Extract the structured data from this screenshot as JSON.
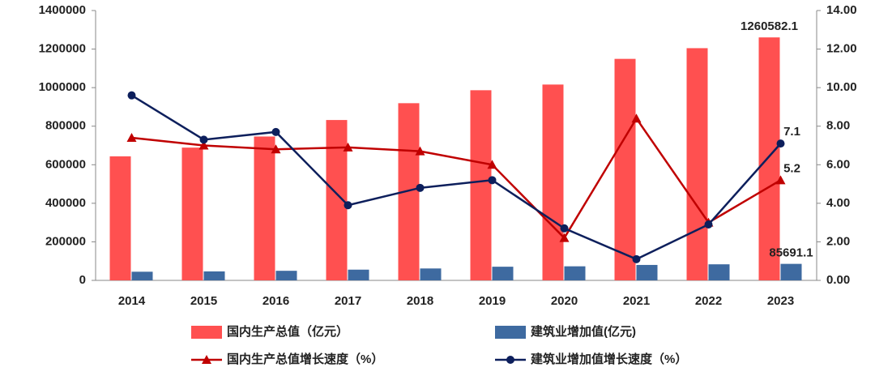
{
  "chart_data": {
    "type": "bar-line",
    "categories": [
      "2014",
      "2015",
      "2016",
      "2017",
      "2018",
      "2019",
      "2020",
      "2021",
      "2022",
      "2023"
    ],
    "series": [
      {
        "name": "国内生产总值（亿元）",
        "type": "bar",
        "color": "#ff5050",
        "values": [
          643563,
          688858,
          746395,
          832036,
          919281,
          986515,
          1015986,
          1149237,
          1204724,
          1260582.1
        ],
        "value_labels": [
          null,
          null,
          null,
          null,
          null,
          null,
          null,
          null,
          null,
          "1260582.1"
        ]
      },
      {
        "name": "建筑业增加值(亿元)",
        "type": "bar",
        "color": "#3e6aa0",
        "values": [
          44880,
          46627,
          49703,
          55690,
          61808,
          70904,
          72996,
          80138,
          83383,
          85691.1
        ],
        "value_labels": [
          null,
          null,
          null,
          null,
          null,
          null,
          null,
          null,
          null,
          "85691.1"
        ]
      },
      {
        "name": "国内生产总值增长速度（%）",
        "type": "line",
        "axis": "y2",
        "marker": "triangle",
        "color": "#c00000",
        "values": [
          7.4,
          7.0,
          6.8,
          6.9,
          6.7,
          6.0,
          2.2,
          8.4,
          3.0,
          5.2
        ],
        "value_labels": [
          null,
          null,
          null,
          null,
          null,
          null,
          null,
          null,
          null,
          "5.2"
        ]
      },
      {
        "name": "建筑业增加值增长速度（%）",
        "type": "line",
        "axis": "y2",
        "marker": "circle",
        "color": "#0d1f5c",
        "values": [
          9.6,
          7.3,
          7.7,
          3.9,
          4.8,
          5.2,
          2.7,
          1.1,
          2.9,
          7.1
        ],
        "value_labels": [
          null,
          null,
          null,
          null,
          null,
          null,
          null,
          null,
          null,
          "7.1"
        ]
      }
    ],
    "ylim": [
      0,
      1400000
    ],
    "yticks": [
      0,
      200000,
      400000,
      600000,
      800000,
      1000000,
      1200000,
      1400000
    ],
    "y2lim": [
      0,
      14
    ],
    "y2ticks": [
      {
        "value": 0,
        "label": "0.00"
      },
      {
        "value": 2,
        "label": "2.00"
      },
      {
        "value": 4,
        "label": "4.00"
      },
      {
        "value": 6,
        "label": "6.00"
      },
      {
        "value": 8,
        "label": "8.00"
      },
      {
        "value": 10,
        "label": "10.00"
      },
      {
        "value": 12,
        "label": "12.00"
      },
      {
        "value": 14,
        "label": "14.00"
      }
    ],
    "grid": false
  }
}
